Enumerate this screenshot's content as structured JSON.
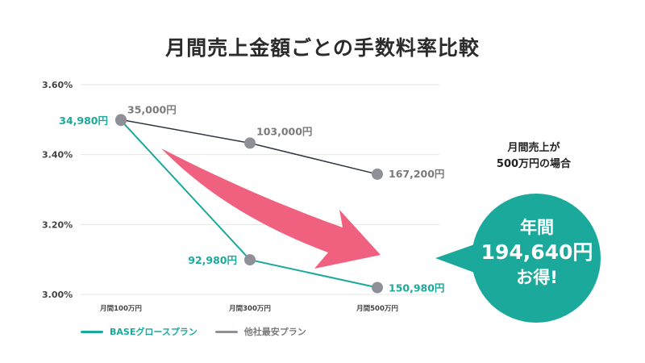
{
  "colors": {
    "teal": "#1aa99b",
    "gray_point": "#8f8f97",
    "dark_line": "#2e3740",
    "label_gray": "#7a7a7a",
    "arrow": "#f0607f",
    "bubble": "#1aa99b",
    "grid": "#e4e4e4"
  },
  "chart_data": {
    "type": "line",
    "title": "月間売上金額ごとの手数料率比較",
    "categories": [
      "月間100万円",
      "月間300万円",
      "月間500万円"
    ],
    "ylim": [
      3.0,
      3.6
    ],
    "yticks": [
      {
        "value": 3.0,
        "label": "3.00%"
      },
      {
        "value": 3.2,
        "label": "3.20%"
      },
      {
        "value": 3.4,
        "label": "3.40%"
      },
      {
        "value": 3.6,
        "label": "3.60%"
      }
    ],
    "grid": true,
    "legend": "bottom-left",
    "series": [
      {
        "name": "BASEグロースプラン",
        "color": "#1aa99b",
        "values": [
          3.498,
          3.099,
          3.0196
        ],
        "labels": [
          "34,980円",
          "92,980円",
          "150,980円"
        ]
      },
      {
        "name": "他社最安プラン",
        "color": "#8f8f97",
        "values": [
          3.5,
          3.433,
          3.344
        ],
        "labels": [
          "35,000円",
          "103,000円",
          "167,200円"
        ]
      }
    ]
  },
  "callout": {
    "label_line1": "月間売上が",
    "label_line2": "500万円の場合",
    "bubble_line1": "年間",
    "bubble_line2": "194,640円",
    "bubble_line3": "お得!"
  }
}
